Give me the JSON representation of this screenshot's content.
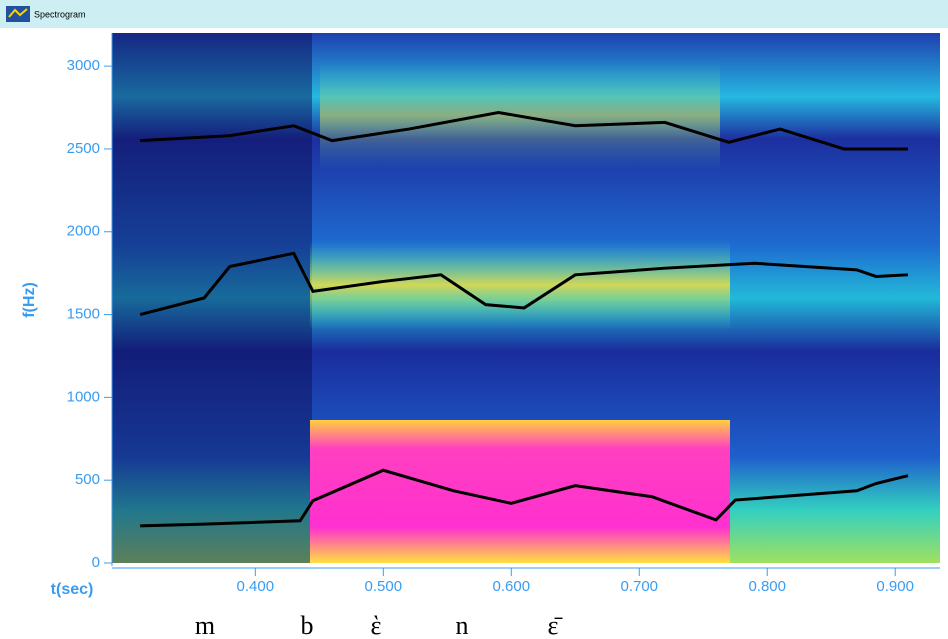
{
  "chart_data": {
    "type": "spectrogram",
    "title": "Spectrogram",
    "xlabel": "t(sec)",
    "ylabel": "f(Hz)",
    "xlim": [
      0.288,
      0.935
    ],
    "ylim": [
      0,
      3200
    ],
    "xticks": [
      {
        "value": 0.4,
        "label": "0.400"
      },
      {
        "value": 0.5,
        "label": "0.500"
      },
      {
        "value": 0.6,
        "label": "0.600"
      },
      {
        "value": 0.7,
        "label": "0.700"
      },
      {
        "value": 0.8,
        "label": "0.800"
      },
      {
        "value": 0.9,
        "label": "0.900"
      }
    ],
    "yticks": [
      0,
      500,
      1000,
      1500,
      2000,
      2500,
      3000
    ],
    "series": [
      {
        "color": "#000000",
        "x": [
          0.31,
          0.36,
          0.435,
          0.445,
          0.5,
          0.555,
          0.6,
          0.65,
          0.71,
          0.76,
          0.775,
          0.87,
          0.885,
          0.91
        ],
        "values": [
          224,
          235,
          255,
          376,
          560,
          436,
          360,
          467,
          400,
          260,
          380,
          436,
          480,
          527
        ]
      },
      {
        "color": "#000000",
        "x": [
          0.31,
          0.36,
          0.38,
          0.43,
          0.445,
          0.5,
          0.545,
          0.58,
          0.61,
          0.65,
          0.72,
          0.79,
          0.87,
          0.885,
          0.91
        ],
        "values": [
          1500,
          1600,
          1790,
          1870,
          1640,
          1700,
          1740,
          1560,
          1540,
          1740,
          1780,
          1810,
          1770,
          1730,
          1740
        ]
      },
      {
        "color": "#000000",
        "x": [
          0.31,
          0.38,
          0.43,
          0.46,
          0.52,
          0.59,
          0.65,
          0.72,
          0.77,
          0.81,
          0.86,
          0.91
        ],
        "values": [
          2550,
          2580,
          2640,
          2550,
          2620,
          2720,
          2640,
          2660,
          2540,
          2620,
          2500,
          2500
        ]
      }
    ],
    "annotations": [
      "m",
      "b",
      "ὲ",
      "n",
      "ε̄"
    ]
  }
}
